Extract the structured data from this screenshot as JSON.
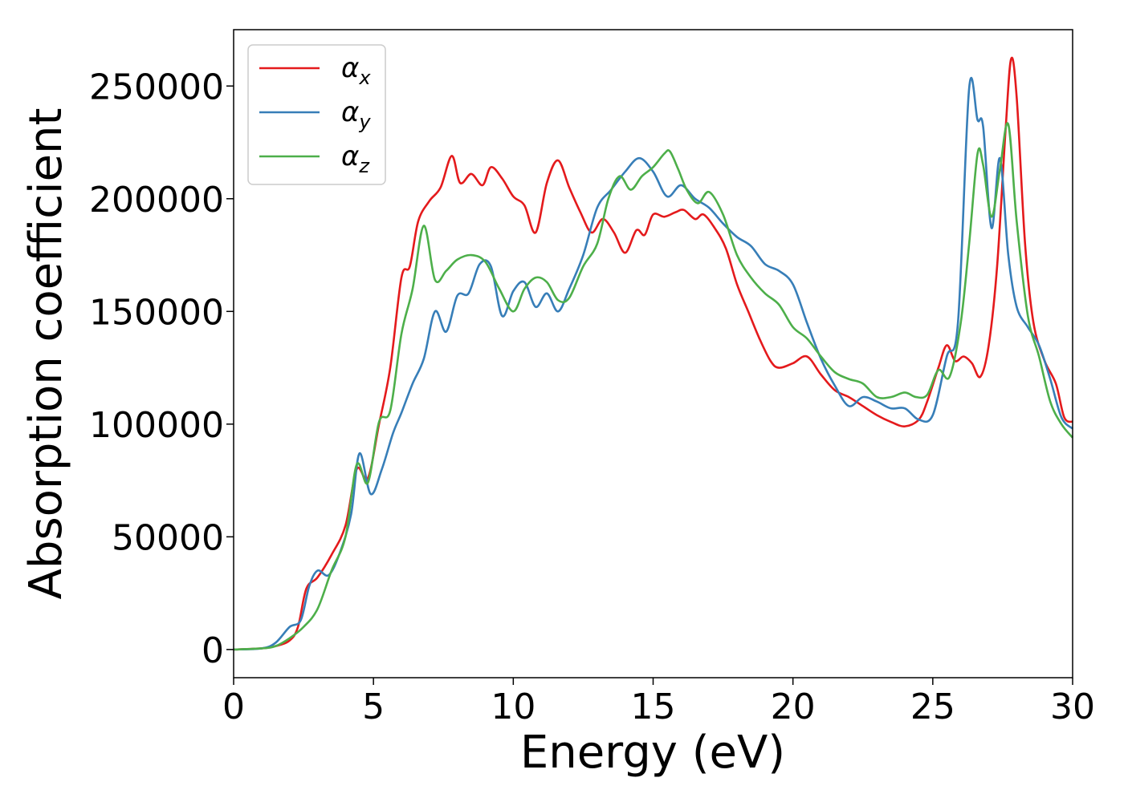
{
  "chart_data": {
    "type": "line",
    "title": "",
    "xlabel": "Energy (eV)",
    "ylabel": "Absorption coefficient",
    "xlim": [
      0,
      30
    ],
    "ylim": [
      -12500,
      275000
    ],
    "xticks": [
      0,
      5,
      10,
      15,
      20,
      25,
      30
    ],
    "xtick_labels": [
      "0",
      "5",
      "10",
      "15",
      "20",
      "25",
      "30"
    ],
    "yticks": [
      0,
      50000,
      100000,
      150000,
      200000,
      250000
    ],
    "ytick_labels": [
      "0",
      "50000",
      "100000",
      "150000",
      "200000",
      "250000"
    ],
    "grid": false,
    "legend_position": "top-left",
    "series": [
      {
        "name": "αx",
        "symbol": "α",
        "subscript": "x",
        "color": "#e41a1c",
        "x": [
          0,
          1,
          1.5,
          2,
          2.3,
          2.6,
          3,
          3.5,
          4,
          4.4,
          4.8,
          5.2,
          5.6,
          6,
          6.3,
          6.6,
          7,
          7.4,
          7.8,
          8.1,
          8.5,
          8.9,
          9.2,
          9.6,
          10,
          10.4,
          10.8,
          11.2,
          11.6,
          12,
          12.4,
          12.8,
          13.2,
          13.6,
          14,
          14.4,
          14.7,
          15,
          15.4,
          15.8,
          16.1,
          16.5,
          16.8,
          17.2,
          17.6,
          18,
          18.4,
          18.8,
          19.2,
          19.5,
          20,
          20.5,
          21,
          21.5,
          22,
          22.5,
          23,
          23.5,
          24,
          24.5,
          24.8,
          25.2,
          25.5,
          25.8,
          26.1,
          26.4,
          26.7,
          27,
          27.3,
          27.6,
          27.8,
          28,
          28.3,
          28.6,
          29,
          29.4,
          29.7,
          30
        ],
        "y": [
          0,
          500,
          1500,
          4000,
          10000,
          27000,
          32000,
          42000,
          55000,
          80000,
          76000,
          100000,
          125000,
          165000,
          170000,
          190000,
          199000,
          205000,
          219000,
          207000,
          211000,
          206000,
          214000,
          209000,
          201000,
          197000,
          185000,
          207000,
          217000,
          205000,
          194000,
          185000,
          191000,
          185000,
          176000,
          186000,
          184000,
          193000,
          192000,
          194000,
          195000,
          191000,
          193000,
          187000,
          178000,
          162000,
          150000,
          138000,
          128000,
          125000,
          127000,
          130000,
          122000,
          115000,
          112000,
          108000,
          104000,
          101000,
          99000,
          102000,
          110000,
          125000,
          135000,
          128000,
          130000,
          127000,
          121000,
          135000,
          170000,
          230000,
          262000,
          245000,
          180000,
          145000,
          128000,
          118000,
          103000,
          101000
        ]
      },
      {
        "name": "αy",
        "symbol": "α",
        "subscript": "y",
        "color": "#377eb8",
        "x": [
          0,
          1,
          1.5,
          2,
          2.4,
          2.7,
          3,
          3.4,
          3.8,
          4.2,
          4.5,
          4.9,
          5.3,
          5.7,
          6,
          6.4,
          6.8,
          7.2,
          7.6,
          8,
          8.4,
          8.8,
          9.2,
          9.6,
          10,
          10.4,
          10.8,
          11.2,
          11.6,
          12,
          12.5,
          13,
          13.5,
          14,
          14.5,
          15,
          15.5,
          16,
          16.5,
          17,
          17.5,
          18,
          18.5,
          19,
          19.5,
          20,
          20.5,
          21,
          21.5,
          22,
          22.5,
          23,
          23.5,
          24,
          24.5,
          25,
          25.5,
          25.9,
          26.3,
          26.6,
          26.8,
          27.1,
          27.4,
          27.7,
          28,
          28.4,
          28.8,
          29.2,
          29.6,
          30
        ],
        "y": [
          0,
          500,
          3000,
          10000,
          13000,
          28000,
          35000,
          33000,
          43000,
          60000,
          87000,
          69000,
          80000,
          96000,
          105000,
          118000,
          129000,
          150000,
          141000,
          157000,
          158000,
          171000,
          170000,
          148000,
          159000,
          163000,
          152000,
          158000,
          150000,
          160000,
          175000,
          196000,
          204000,
          212000,
          218000,
          212000,
          201000,
          206000,
          200000,
          196000,
          189000,
          183000,
          179000,
          171000,
          168000,
          162000,
          145000,
          129000,
          117000,
          108000,
          112000,
          110000,
          107000,
          107000,
          102000,
          104000,
          130000,
          145000,
          249000,
          235000,
          232000,
          187000,
          218000,
          175000,
          152000,
          143000,
          135000,
          120000,
          103000,
          98000
        ]
      },
      {
        "name": "αz",
        "symbol": "α",
        "subscript": "z",
        "color": "#4daf4a",
        "x": [
          0,
          1,
          1.5,
          2,
          2.5,
          3,
          3.5,
          4,
          4.4,
          4.8,
          5.2,
          5.6,
          6,
          6.4,
          6.8,
          7.2,
          7.6,
          8,
          8.5,
          9,
          9.5,
          10,
          10.4,
          10.8,
          11.2,
          11.6,
          12,
          12.5,
          13,
          13.4,
          13.8,
          14.2,
          14.6,
          15,
          15.4,
          15.6,
          15.9,
          16.2,
          16.6,
          17,
          17.5,
          18,
          18.5,
          19,
          19.5,
          20,
          20.5,
          21,
          21.5,
          22,
          22.5,
          23,
          23.5,
          24,
          24.4,
          24.8,
          25.2,
          25.6,
          26,
          26.3,
          26.6,
          26.8,
          27.1,
          27.4,
          27.7,
          28,
          28.4,
          28.8,
          29.2,
          29.6,
          30
        ],
        "y": [
          0,
          500,
          1500,
          5000,
          10000,
          18000,
          35000,
          50000,
          82000,
          74000,
          101000,
          106000,
          140000,
          160000,
          188000,
          164000,
          168000,
          173000,
          175000,
          172000,
          160000,
          150000,
          160000,
          165000,
          163000,
          155000,
          156000,
          170000,
          180000,
          200000,
          210000,
          204000,
          210000,
          214000,
          220000,
          221000,
          213000,
          204000,
          198000,
          203000,
          193000,
          175000,
          165000,
          158000,
          153000,
          143000,
          138000,
          130000,
          123000,
          120000,
          118000,
          112000,
          112000,
          114000,
          112000,
          113000,
          124000,
          121000,
          145000,
          180000,
          220000,
          215000,
          192000,
          213000,
          233000,
          190000,
          148000,
          130000,
          110000,
          100000,
          94000
        ]
      }
    ]
  }
}
